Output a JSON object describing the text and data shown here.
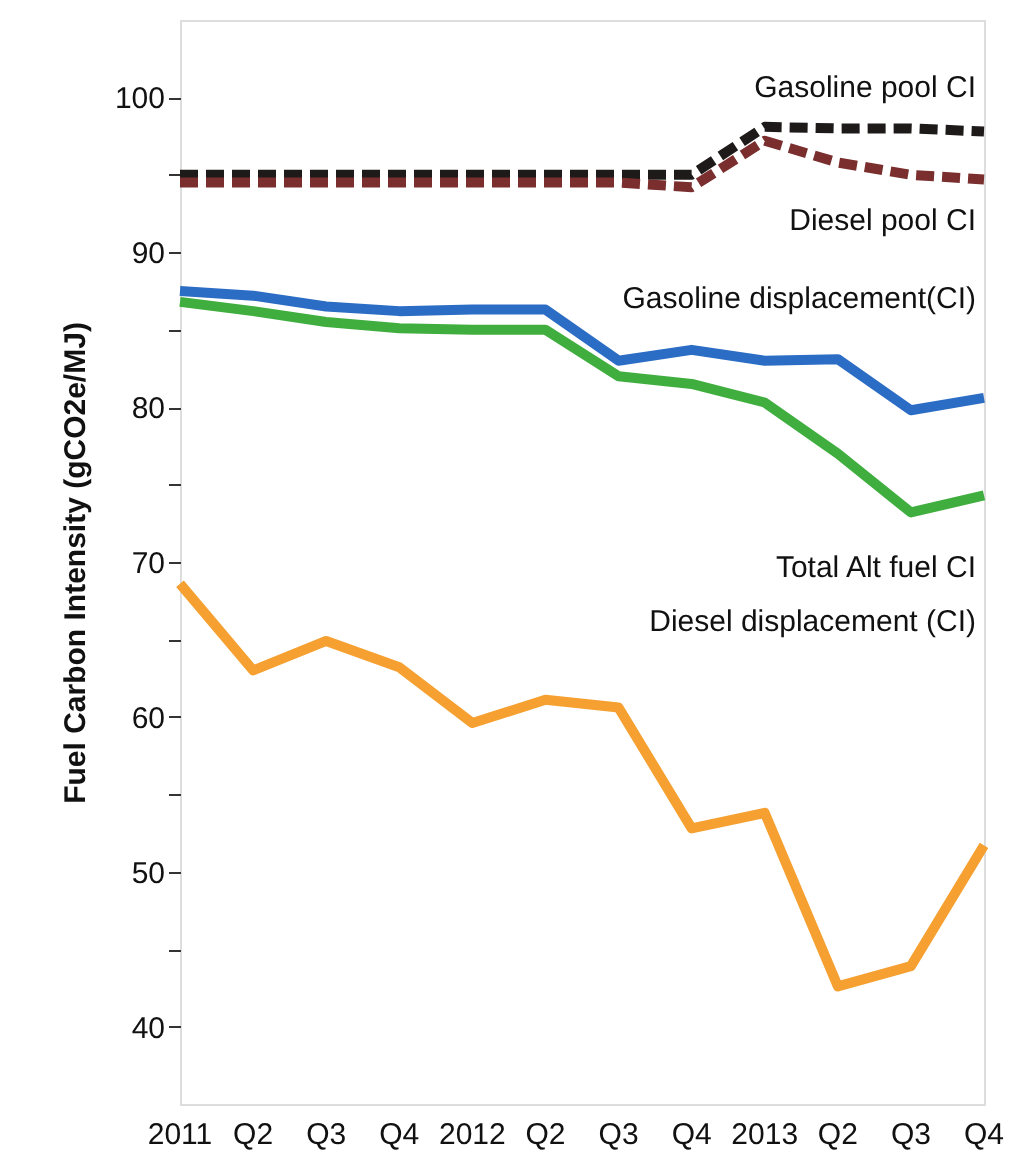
{
  "chart_data": {
    "type": "line",
    "ylabel": "Fuel Carbon Intensity (gCO2e/MJ)",
    "categories": [
      "2011",
      "Q2",
      "Q3",
      "Q4",
      "2012",
      "Q2",
      "Q3",
      "Q4",
      "2013",
      "Q2",
      "Q3",
      "Q4"
    ],
    "ylim": [
      35,
      105
    ],
    "yticks": [
      40,
      {
        "value": 45,
        "label": null
      },
      50,
      {
        "value": 55,
        "label": null
      },
      60,
      {
        "value": 65,
        "label": null
      },
      70,
      {
        "value": 75,
        "label": null
      },
      80,
      {
        "value": 85,
        "label": null
      },
      90,
      {
        "value": 95,
        "label": null
      },
      100
    ],
    "grid": false,
    "marker": "none",
    "series": [
      {
        "name": "Gasoline pool CI",
        "color": "#1e1a1a",
        "line_style": "dashed",
        "values": [
          95.0,
          95.0,
          95.0,
          95.0,
          95.0,
          95.0,
          95.0,
          95.0,
          98.1,
          98.0,
          98.0,
          97.8
        ]
      },
      {
        "name": "Diesel pool CI",
        "color": "#7a2e2e",
        "line_style": "dashed",
        "values": [
          94.5,
          94.5,
          94.5,
          94.5,
          94.5,
          94.5,
          94.5,
          94.2,
          97.2,
          95.8,
          95.0,
          94.7
        ]
      },
      {
        "name": "Gasoline displacement(CI)",
        "color": "#2b6cc4",
        "line_style": "solid",
        "values": [
          87.5,
          87.2,
          86.5,
          86.2,
          86.3,
          86.3,
          83.0,
          83.7,
          83.0,
          83.1,
          79.8,
          80.6
        ]
      },
      {
        "name": "Total Alt fuel CI",
        "color": "#3fae3f",
        "line_style": "solid",
        "values": [
          86.8,
          86.2,
          85.5,
          85.1,
          85.0,
          85.0,
          82.0,
          81.5,
          80.3,
          77.0,
          73.2,
          74.3
        ]
      },
      {
        "name": "Diesel displacement (CI)",
        "color": "#f5a030",
        "line_style": "solid",
        "values": [
          68.6,
          63.0,
          64.9,
          63.2,
          59.6,
          61.1,
          60.6,
          52.8,
          53.8,
          42.6,
          43.9,
          51.7
        ]
      }
    ]
  }
}
